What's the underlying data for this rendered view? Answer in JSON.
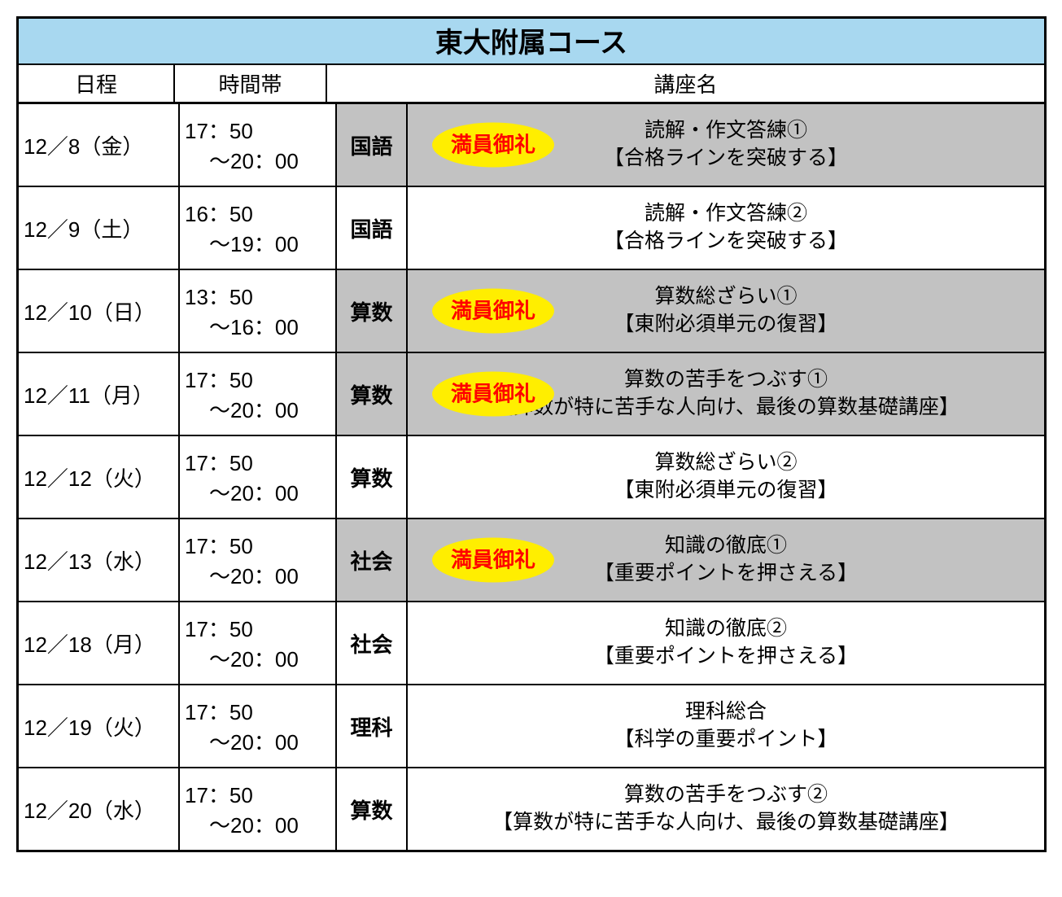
{
  "title": "東大附属コース",
  "title_bg": "#a8d8f0",
  "headers": {
    "date": "日程",
    "time": "時間帯",
    "course": "講座名"
  },
  "badge": {
    "text": "満員御礼",
    "bg": "#ffee00",
    "fg": "#ff0000"
  },
  "gray_bg": "#c2c2c2",
  "rows": [
    {
      "date": "12／8（金）",
      "time1": "17：50",
      "time2": "～20：00",
      "subject": "国語",
      "line1": "読解・作文答練①",
      "line2": "【合格ラインを突破する】",
      "full": true,
      "gray": true
    },
    {
      "date": "12／9（土）",
      "time1": "16：50",
      "time2": "～19：00",
      "subject": "国語",
      "line1": "読解・作文答練②",
      "line2": "【合格ラインを突破する】",
      "full": false,
      "gray": false
    },
    {
      "date": "12／10（日）",
      "time1": "13：50",
      "time2": "～16：00",
      "subject": "算数",
      "line1": "算数総ざらい①",
      "line2": "【東附必須単元の復習】",
      "full": true,
      "gray": true
    },
    {
      "date": "12／11（月）",
      "time1": "17：50",
      "time2": "～20：00",
      "subject": "算数",
      "line1": "算数の苦手をつぶす①",
      "line2": "【算数が特に苦手な人向け、最後の算数基礎講座】",
      "full": true,
      "gray": true
    },
    {
      "date": "12／12（火）",
      "time1": "17：50",
      "time2": "～20：00",
      "subject": "算数",
      "line1": "算数総ざらい②",
      "line2": "【東附必須単元の復習】",
      "full": false,
      "gray": false
    },
    {
      "date": "12／13（水）",
      "time1": "17：50",
      "time2": "～20：00",
      "subject": "社会",
      "line1": "知識の徹底①",
      "line2": "【重要ポイントを押さえる】",
      "full": true,
      "gray": true
    },
    {
      "date": "12／18（月）",
      "time1": "17：50",
      "time2": "～20：00",
      "subject": "社会",
      "line1": "知識の徹底②",
      "line2": "【重要ポイントを押さえる】",
      "full": false,
      "gray": false
    },
    {
      "date": "12／19（火）",
      "time1": "17：50",
      "time2": "～20：00",
      "subject": "理科",
      "line1": "理科総合",
      "line2": "【科学の重要ポイント】",
      "full": false,
      "gray": false
    },
    {
      "date": "12／20（水）",
      "time1": "17：50",
      "time2": "～20：00",
      "subject": "算数",
      "line1": "算数の苦手をつぶす②",
      "line2": "【算数が特に苦手な人向け、最後の算数基礎講座】",
      "full": false,
      "gray": false
    }
  ]
}
